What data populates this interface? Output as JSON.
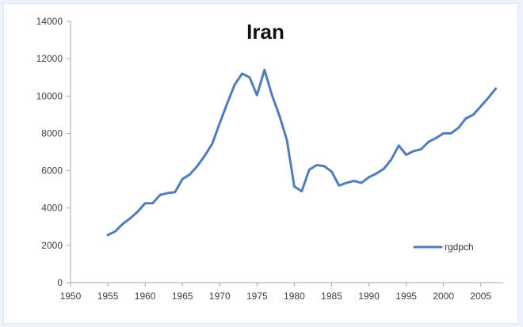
{
  "chart_data": {
    "type": "line",
    "title": "Iran",
    "xlabel": "",
    "ylabel": "",
    "xlim": [
      1950,
      2008
    ],
    "ylim": [
      0,
      14000
    ],
    "x_ticks": [
      "1950",
      "1955",
      "1960",
      "1965",
      "1970",
      "1975",
      "1980",
      "1985",
      "1990",
      "1995",
      "2000",
      "2005"
    ],
    "y_ticks": [
      "0",
      "2000",
      "4000",
      "6000",
      "8000",
      "10000",
      "12000",
      "14000"
    ],
    "grid": false,
    "legend_position": "bottom-right",
    "series": [
      {
        "name": "rgdpch",
        "color": "#4f7dbd",
        "x": [
          1955,
          1956,
          1957,
          1958,
          1959,
          1960,
          1961,
          1962,
          1963,
          1964,
          1965,
          1966,
          1967,
          1968,
          1969,
          1970,
          1971,
          1972,
          1973,
          1974,
          1975,
          1976,
          1977,
          1978,
          1979,
          1980,
          1981,
          1982,
          1983,
          1984,
          1985,
          1986,
          1987,
          1988,
          1989,
          1990,
          1991,
          1992,
          1993,
          1994,
          1995,
          1996,
          1997,
          1998,
          1999,
          2000,
          2001,
          2002,
          2003,
          2004,
          2005,
          2006,
          2007
        ],
        "values": [
          2550,
          2750,
          3150,
          3450,
          3800,
          4250,
          4250,
          4700,
          4800,
          4850,
          5550,
          5800,
          6250,
          6800,
          7450,
          8550,
          9600,
          10600,
          11200,
          11000,
          10050,
          11400,
          10050,
          8950,
          7650,
          5150,
          4900,
          6050,
          6300,
          6250,
          5950,
          5200,
          5350,
          5450,
          5350,
          5650,
          5850,
          6100,
          6600,
          7350,
          6850,
          7050,
          7150,
          7550,
          7750,
          8000,
          8000,
          8300,
          8800,
          9000,
          9450,
          9900,
          10400
        ]
      }
    ]
  }
}
